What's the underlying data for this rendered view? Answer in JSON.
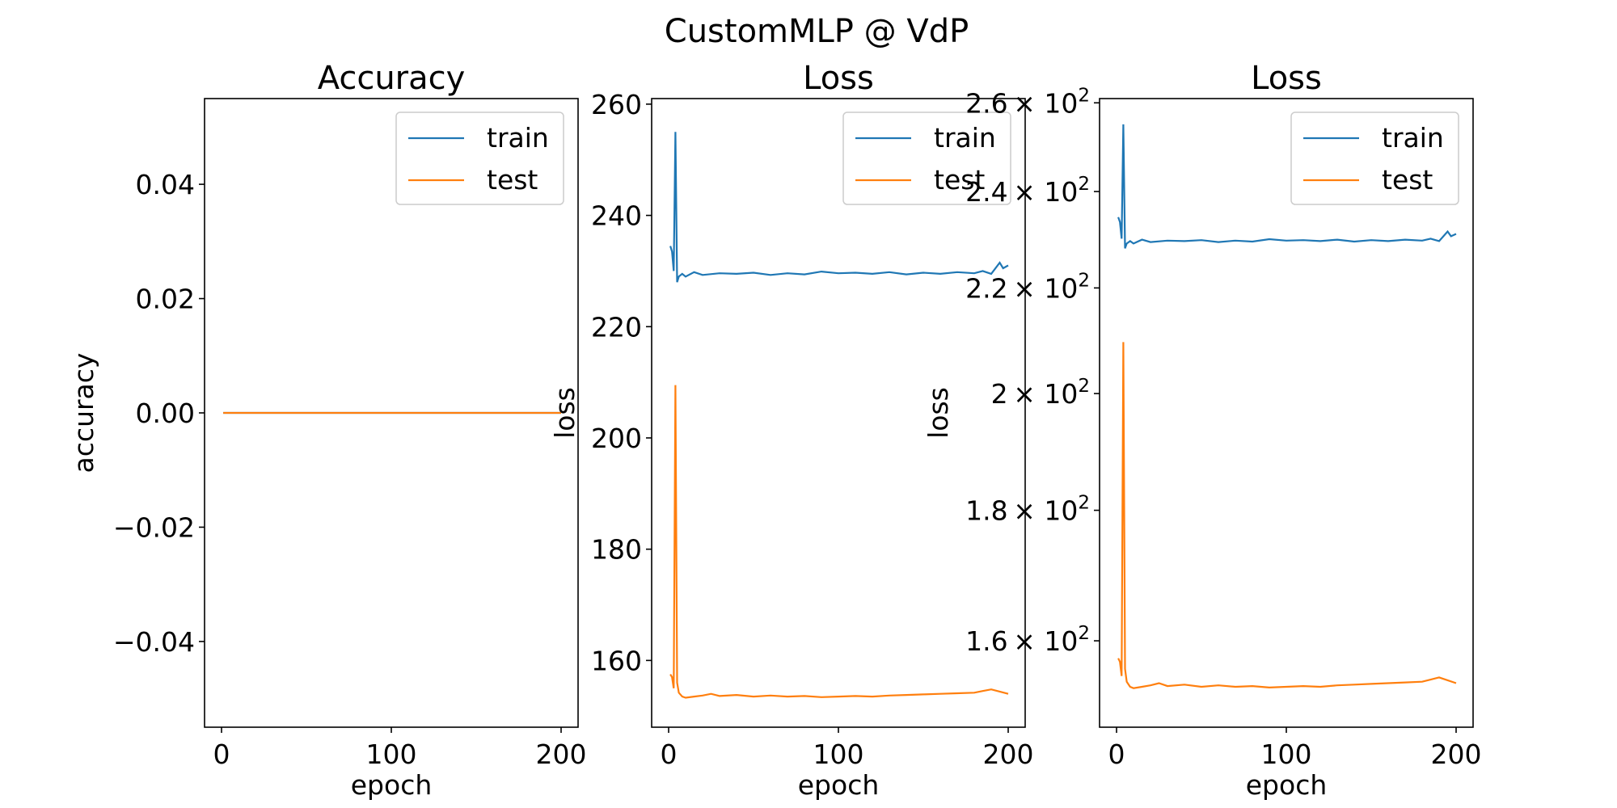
{
  "suptitle": "CustomMLP @ VdP",
  "colors": {
    "train": "#1f77b4",
    "test": "#ff7f0e",
    "axes": "#000000",
    "legend_border": "#cccccc"
  },
  "chart_data": [
    {
      "type": "line",
      "title": "Accuracy",
      "xlabel": "epoch",
      "ylabel": "accuracy",
      "xlim": [
        -10,
        210
      ],
      "ylim": [
        -0.055,
        0.055
      ],
      "yscale": "linear",
      "xticks": [
        0,
        100,
        200
      ],
      "xticklabels": [
        "0",
        "100",
        "200"
      ],
      "yticks": [
        -0.04,
        -0.02,
        0.0,
        0.02,
        0.04
      ],
      "yticklabels": [
        "−0.04",
        "−0.02",
        "0.00",
        "0.02",
        "0.04"
      ],
      "grid": false,
      "legend": "upper right",
      "series": [
        {
          "name": "train",
          "color_key": "train",
          "points": [
            [
              1,
              0
            ],
            [
              200,
              0
            ]
          ]
        },
        {
          "name": "test",
          "color_key": "test",
          "points": [
            [
              1,
              0
            ],
            [
              200,
              0
            ]
          ]
        }
      ]
    },
    {
      "type": "line",
      "title": "Loss",
      "xlabel": "epoch",
      "ylabel": "loss",
      "xlim": [
        -10,
        210
      ],
      "ylim": [
        148,
        261
      ],
      "yscale": "linear",
      "xticks": [
        0,
        100,
        200
      ],
      "xticklabels": [
        "0",
        "100",
        "200"
      ],
      "yticks": [
        160,
        180,
        200,
        220,
        240,
        260
      ],
      "yticklabels": [
        "160",
        "180",
        "200",
        "220",
        "240",
        "260"
      ],
      "grid": false,
      "legend": "upper right",
      "series": [
        {
          "name": "train",
          "color_key": "train",
          "points": [
            [
              1,
              234.5
            ],
            [
              2,
              233.5
            ],
            [
              3,
              230
            ],
            [
              4,
              255
            ],
            [
              5,
              228
            ],
            [
              6,
              229
            ],
            [
              8,
              229.5
            ],
            [
              10,
              229
            ],
            [
              15,
              229.8
            ],
            [
              20,
              229.3
            ],
            [
              30,
              229.6
            ],
            [
              40,
              229.5
            ],
            [
              50,
              229.7
            ],
            [
              60,
              229.3
            ],
            [
              70,
              229.6
            ],
            [
              80,
              229.4
            ],
            [
              90,
              229.9
            ],
            [
              100,
              229.6
            ],
            [
              110,
              229.7
            ],
            [
              120,
              229.5
            ],
            [
              130,
              229.8
            ],
            [
              140,
              229.4
            ],
            [
              150,
              229.7
            ],
            [
              160,
              229.5
            ],
            [
              170,
              229.8
            ],
            [
              180,
              229.6
            ],
            [
              185,
              230
            ],
            [
              190,
              229.5
            ],
            [
              195,
              231.5
            ],
            [
              197,
              230.5
            ],
            [
              200,
              231
            ]
          ]
        },
        {
          "name": "test",
          "color_key": "test",
          "points": [
            [
              1,
              157.5
            ],
            [
              2,
              157
            ],
            [
              3,
              155
            ],
            [
              4,
              209.5
            ],
            [
              5,
              156
            ],
            [
              6,
              154.2
            ],
            [
              8,
              153.5
            ],
            [
              10,
              153.3
            ],
            [
              15,
              153.5
            ],
            [
              20,
              153.7
            ],
            [
              25,
              154
            ],
            [
              30,
              153.6
            ],
            [
              40,
              153.8
            ],
            [
              50,
              153.5
            ],
            [
              60,
              153.7
            ],
            [
              70,
              153.5
            ],
            [
              80,
              153.6
            ],
            [
              90,
              153.4
            ],
            [
              100,
              153.5
            ],
            [
              110,
              153.6
            ],
            [
              120,
              153.5
            ],
            [
              130,
              153.7
            ],
            [
              140,
              153.8
            ],
            [
              150,
              153.9
            ],
            [
              160,
              154
            ],
            [
              170,
              154.1
            ],
            [
              180,
              154.2
            ],
            [
              185,
              154.5
            ],
            [
              190,
              154.8
            ],
            [
              195,
              154.4
            ],
            [
              200,
              154
            ]
          ]
        }
      ]
    },
    {
      "type": "line",
      "title": "Loss",
      "xlabel": "epoch",
      "ylabel": "loss",
      "xlim": [
        -10,
        210
      ],
      "ylim": [
        148,
        261
      ],
      "yscale": "log",
      "xticks": [
        0,
        100,
        200
      ],
      "xticklabels": [
        "0",
        "100",
        "200"
      ],
      "yticks": [
        160,
        180,
        200,
        220,
        240,
        260
      ],
      "yticklabels": [
        "1.6",
        "1.8",
        "2",
        "2.2",
        "2.4",
        "2.6"
      ],
      "ytick_suffix": "× 10",
      "ytick_exponent": "2",
      "grid": false,
      "legend": "upper right",
      "series": [
        {
          "name": "train",
          "color_key": "train",
          "points": [
            [
              1,
              234.5
            ],
            [
              2,
              233.5
            ],
            [
              3,
              230
            ],
            [
              4,
              255
            ],
            [
              5,
              228
            ],
            [
              6,
              229
            ],
            [
              8,
              229.5
            ],
            [
              10,
              229
            ],
            [
              15,
              229.8
            ],
            [
              20,
              229.3
            ],
            [
              30,
              229.6
            ],
            [
              40,
              229.5
            ],
            [
              50,
              229.7
            ],
            [
              60,
              229.3
            ],
            [
              70,
              229.6
            ],
            [
              80,
              229.4
            ],
            [
              90,
              229.9
            ],
            [
              100,
              229.6
            ],
            [
              110,
              229.7
            ],
            [
              120,
              229.5
            ],
            [
              130,
              229.8
            ],
            [
              140,
              229.4
            ],
            [
              150,
              229.7
            ],
            [
              160,
              229.5
            ],
            [
              170,
              229.8
            ],
            [
              180,
              229.6
            ],
            [
              185,
              230
            ],
            [
              190,
              229.5
            ],
            [
              195,
              231.5
            ],
            [
              197,
              230.5
            ],
            [
              200,
              231
            ]
          ]
        },
        {
          "name": "test",
          "color_key": "test",
          "points": [
            [
              1,
              157.5
            ],
            [
              2,
              157
            ],
            [
              3,
              155
            ],
            [
              4,
              209.5
            ],
            [
              5,
              156
            ],
            [
              6,
              154.2
            ],
            [
              8,
              153.5
            ],
            [
              10,
              153.3
            ],
            [
              15,
              153.5
            ],
            [
              20,
              153.7
            ],
            [
              25,
              154
            ],
            [
              30,
              153.6
            ],
            [
              40,
              153.8
            ],
            [
              50,
              153.5
            ],
            [
              60,
              153.7
            ],
            [
              70,
              153.5
            ],
            [
              80,
              153.6
            ],
            [
              90,
              153.4
            ],
            [
              100,
              153.5
            ],
            [
              110,
              153.6
            ],
            [
              120,
              153.5
            ],
            [
              130,
              153.7
            ],
            [
              140,
              153.8
            ],
            [
              150,
              153.9
            ],
            [
              160,
              154
            ],
            [
              170,
              154.1
            ],
            [
              180,
              154.2
            ],
            [
              185,
              154.5
            ],
            [
              190,
              154.8
            ],
            [
              195,
              154.4
            ],
            [
              200,
              154
            ]
          ]
        }
      ]
    }
  ]
}
